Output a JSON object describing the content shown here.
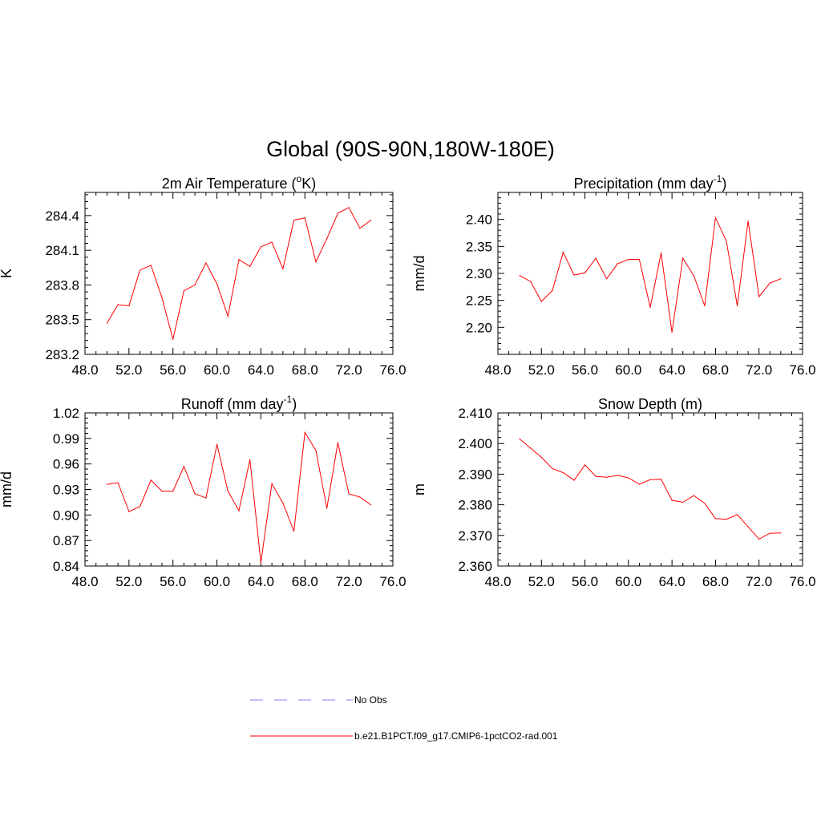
{
  "title": "Global (90S-90N,180W-180E)",
  "colors": {
    "model": "#ff0000",
    "obs": "#9999ff",
    "axis": "#000000"
  },
  "legend": {
    "obs_label": "No Obs",
    "model_label": "b.e21.B1PCT.f09_g17.CMIP6-1pctCO2-rad.001"
  },
  "chart_data": [
    {
      "type": "line",
      "title": "2m Air Temperature (",
      "title_sup": "o",
      "title_tail": "K)",
      "ylabel": "K",
      "xlim": [
        48,
        76
      ],
      "ylim": [
        283.2,
        284.6
      ],
      "xticks": [
        "48.0",
        "52.0",
        "56.0",
        "60.0",
        "64.0",
        "68.0",
        "72.0",
        "76.0"
      ],
      "yticks": [
        "283.2",
        "283.5",
        "283.8",
        "284.1",
        "284.4"
      ],
      "series": [
        {
          "x": [
            50,
            51,
            52,
            53,
            54,
            55,
            56,
            57,
            58,
            59,
            60,
            61,
            62,
            63,
            64,
            65,
            66,
            67,
            68,
            69,
            70,
            71,
            72,
            73,
            74
          ],
          "y": [
            283.47,
            283.63,
            283.62,
            283.93,
            283.97,
            283.69,
            283.33,
            283.75,
            283.8,
            283.99,
            283.81,
            283.53,
            284.02,
            283.96,
            284.13,
            284.17,
            283.94,
            284.36,
            284.38,
            284.0,
            284.2,
            284.42,
            284.47,
            284.29,
            284.36
          ]
        }
      ]
    },
    {
      "type": "line",
      "title": "Precipitation (mm day",
      "title_sup": "-1",
      "title_tail": ")",
      "ylabel": "mm/d",
      "xlim": [
        48,
        76
      ],
      "ylim": [
        2.15,
        2.45
      ],
      "xticks": [
        "48.0",
        "52.0",
        "56.0",
        "60.0",
        "64.0",
        "68.0",
        "72.0",
        "76.0"
      ],
      "yticks": [
        "2.20",
        "2.25",
        "2.30",
        "2.35",
        "2.40"
      ],
      "series": [
        {
          "x": [
            50,
            51,
            52,
            53,
            54,
            55,
            56,
            57,
            58,
            59,
            60,
            61,
            62,
            63,
            64,
            65,
            66,
            67,
            68,
            69,
            70,
            71,
            72,
            73,
            74
          ],
          "y": [
            2.296,
            2.285,
            2.248,
            2.268,
            2.339,
            2.297,
            2.301,
            2.328,
            2.29,
            2.318,
            2.326,
            2.326,
            2.237,
            2.338,
            2.191,
            2.328,
            2.296,
            2.24,
            2.403,
            2.36,
            2.24,
            2.397,
            2.257,
            2.282,
            2.29
          ]
        }
      ]
    },
    {
      "type": "line",
      "title": "Runoff (mm day",
      "title_sup": "-1",
      "title_tail": ")",
      "ylabel": "mm/d",
      "xlim": [
        48,
        76
      ],
      "ylim": [
        0.84,
        1.02
      ],
      "xticks": [
        "48.0",
        "52.0",
        "56.0",
        "60.0",
        "64.0",
        "68.0",
        "72.0",
        "76.0"
      ],
      "yticks": [
        "0.84",
        "0.87",
        "0.90",
        "0.93",
        "0.96",
        "0.99",
        "1.02"
      ],
      "series": [
        {
          "x": [
            50,
            51,
            52,
            53,
            54,
            55,
            56,
            57,
            58,
            59,
            60,
            61,
            62,
            63,
            64,
            65,
            66,
            67,
            68,
            69,
            70,
            71,
            72,
            73,
            74
          ],
          "y": [
            0.936,
            0.938,
            0.904,
            0.91,
            0.941,
            0.928,
            0.928,
            0.957,
            0.925,
            0.92,
            0.983,
            0.928,
            0.905,
            0.965,
            0.844,
            0.937,
            0.914,
            0.881,
            0.997,
            0.976,
            0.908,
            0.985,
            0.925,
            0.921,
            0.912
          ]
        }
      ]
    },
    {
      "type": "line",
      "title": "Snow Depth (m)",
      "title_sup": "",
      "title_tail": "",
      "ylabel": "m",
      "xlim": [
        48,
        76
      ],
      "ylim": [
        2.36,
        2.41
      ],
      "xticks": [
        "48.0",
        "52.0",
        "56.0",
        "60.0",
        "64.0",
        "68.0",
        "72.0",
        "76.0"
      ],
      "yticks": [
        "2.360",
        "2.370",
        "2.380",
        "2.390",
        "2.400",
        "2.410"
      ],
      "series": [
        {
          "x": [
            50,
            51,
            52,
            53,
            54,
            55,
            56,
            57,
            58,
            59,
            60,
            61,
            62,
            63,
            64,
            65,
            66,
            67,
            68,
            69,
            70,
            71,
            72,
            73,
            74
          ],
          "y": [
            2.4015,
            2.3985,
            2.3955,
            2.3918,
            2.3905,
            2.388,
            2.393,
            2.3893,
            2.389,
            2.3896,
            2.3888,
            2.3867,
            2.3882,
            2.3883,
            2.3815,
            2.3808,
            2.383,
            2.3805,
            2.3755,
            2.3753,
            2.3768,
            2.3728,
            2.3688,
            2.3707,
            2.3708
          ]
        }
      ]
    }
  ]
}
